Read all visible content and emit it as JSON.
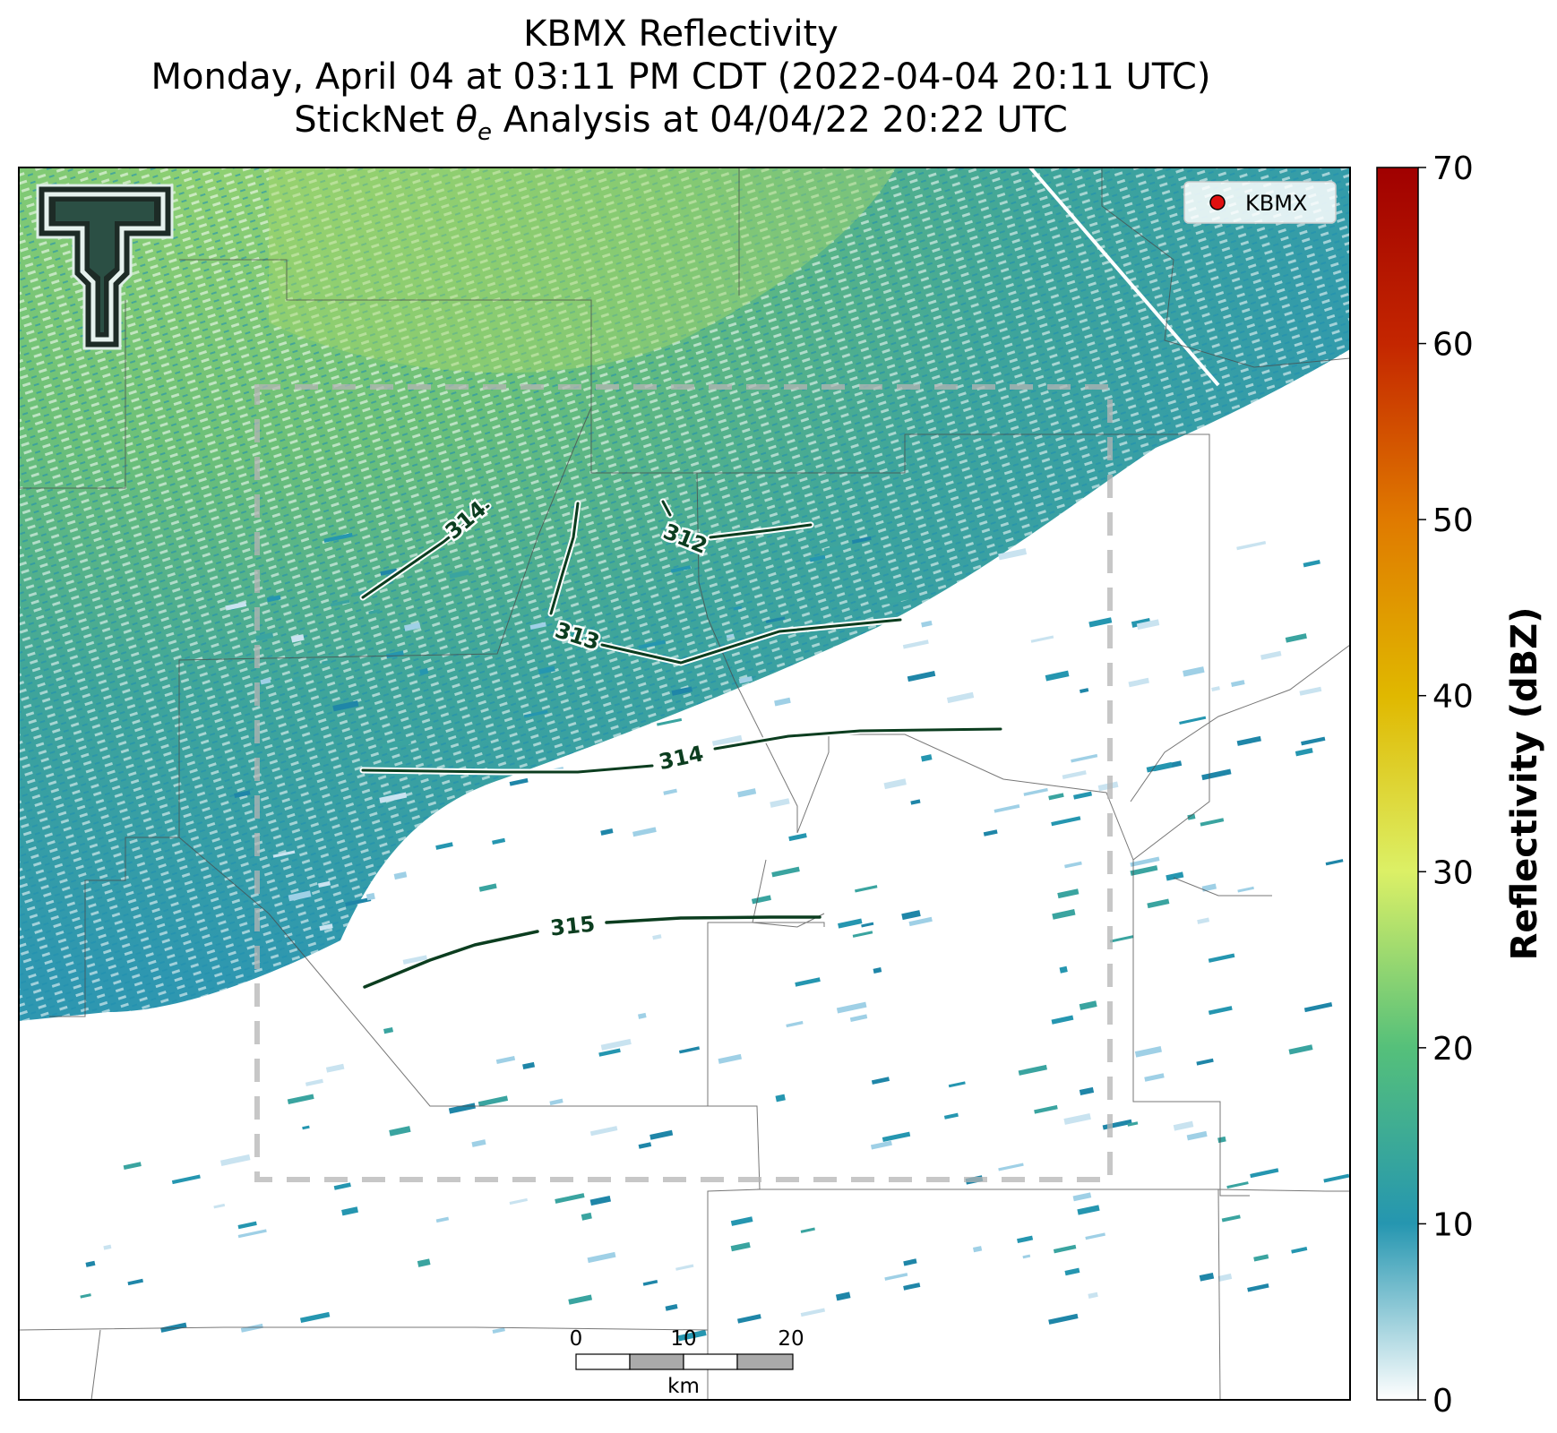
{
  "title": {
    "line1": "KBMX Reflectivity",
    "line2": "Monday, April 04 at 03:11 PM CDT (2022-04-04 20:11 UTC)",
    "line3_prefix": "StickNet ",
    "line3_theta": "θ",
    "line3_sub": "e",
    "line3_suffix": " Analysis at 04/04/22 20:22 UTC"
  },
  "legend": {
    "label": "KBMX",
    "marker_color": "#e01010"
  },
  "colorbar": {
    "label": "Reflectivity (dBZ)",
    "ticks": [
      "0",
      "10",
      "20",
      "30",
      "40",
      "50",
      "60",
      "70"
    ],
    "min": 0,
    "max": 70,
    "colors": [
      "#ffffff",
      "#2596b0",
      "#55c07a",
      "#dcf066",
      "#e0b800",
      "#e07a00",
      "#c42600",
      "#a00000"
    ]
  },
  "contours": [
    {
      "label": "314",
      "value": 314
    },
    {
      "label": "312",
      "value": 312
    },
    {
      "label": "313",
      "value": 313
    },
    {
      "label": "314",
      "value": 314
    },
    {
      "label": "315",
      "value": 315
    }
  ],
  "scalebar": {
    "ticks": [
      "0",
      "10",
      "20"
    ],
    "unit": "km"
  },
  "logo": {
    "name": "Texas Tech Double T"
  },
  "colors": {
    "contour": "#0b3d1f",
    "analysis_box": "#b4b4b4",
    "boundary": "#555555"
  }
}
